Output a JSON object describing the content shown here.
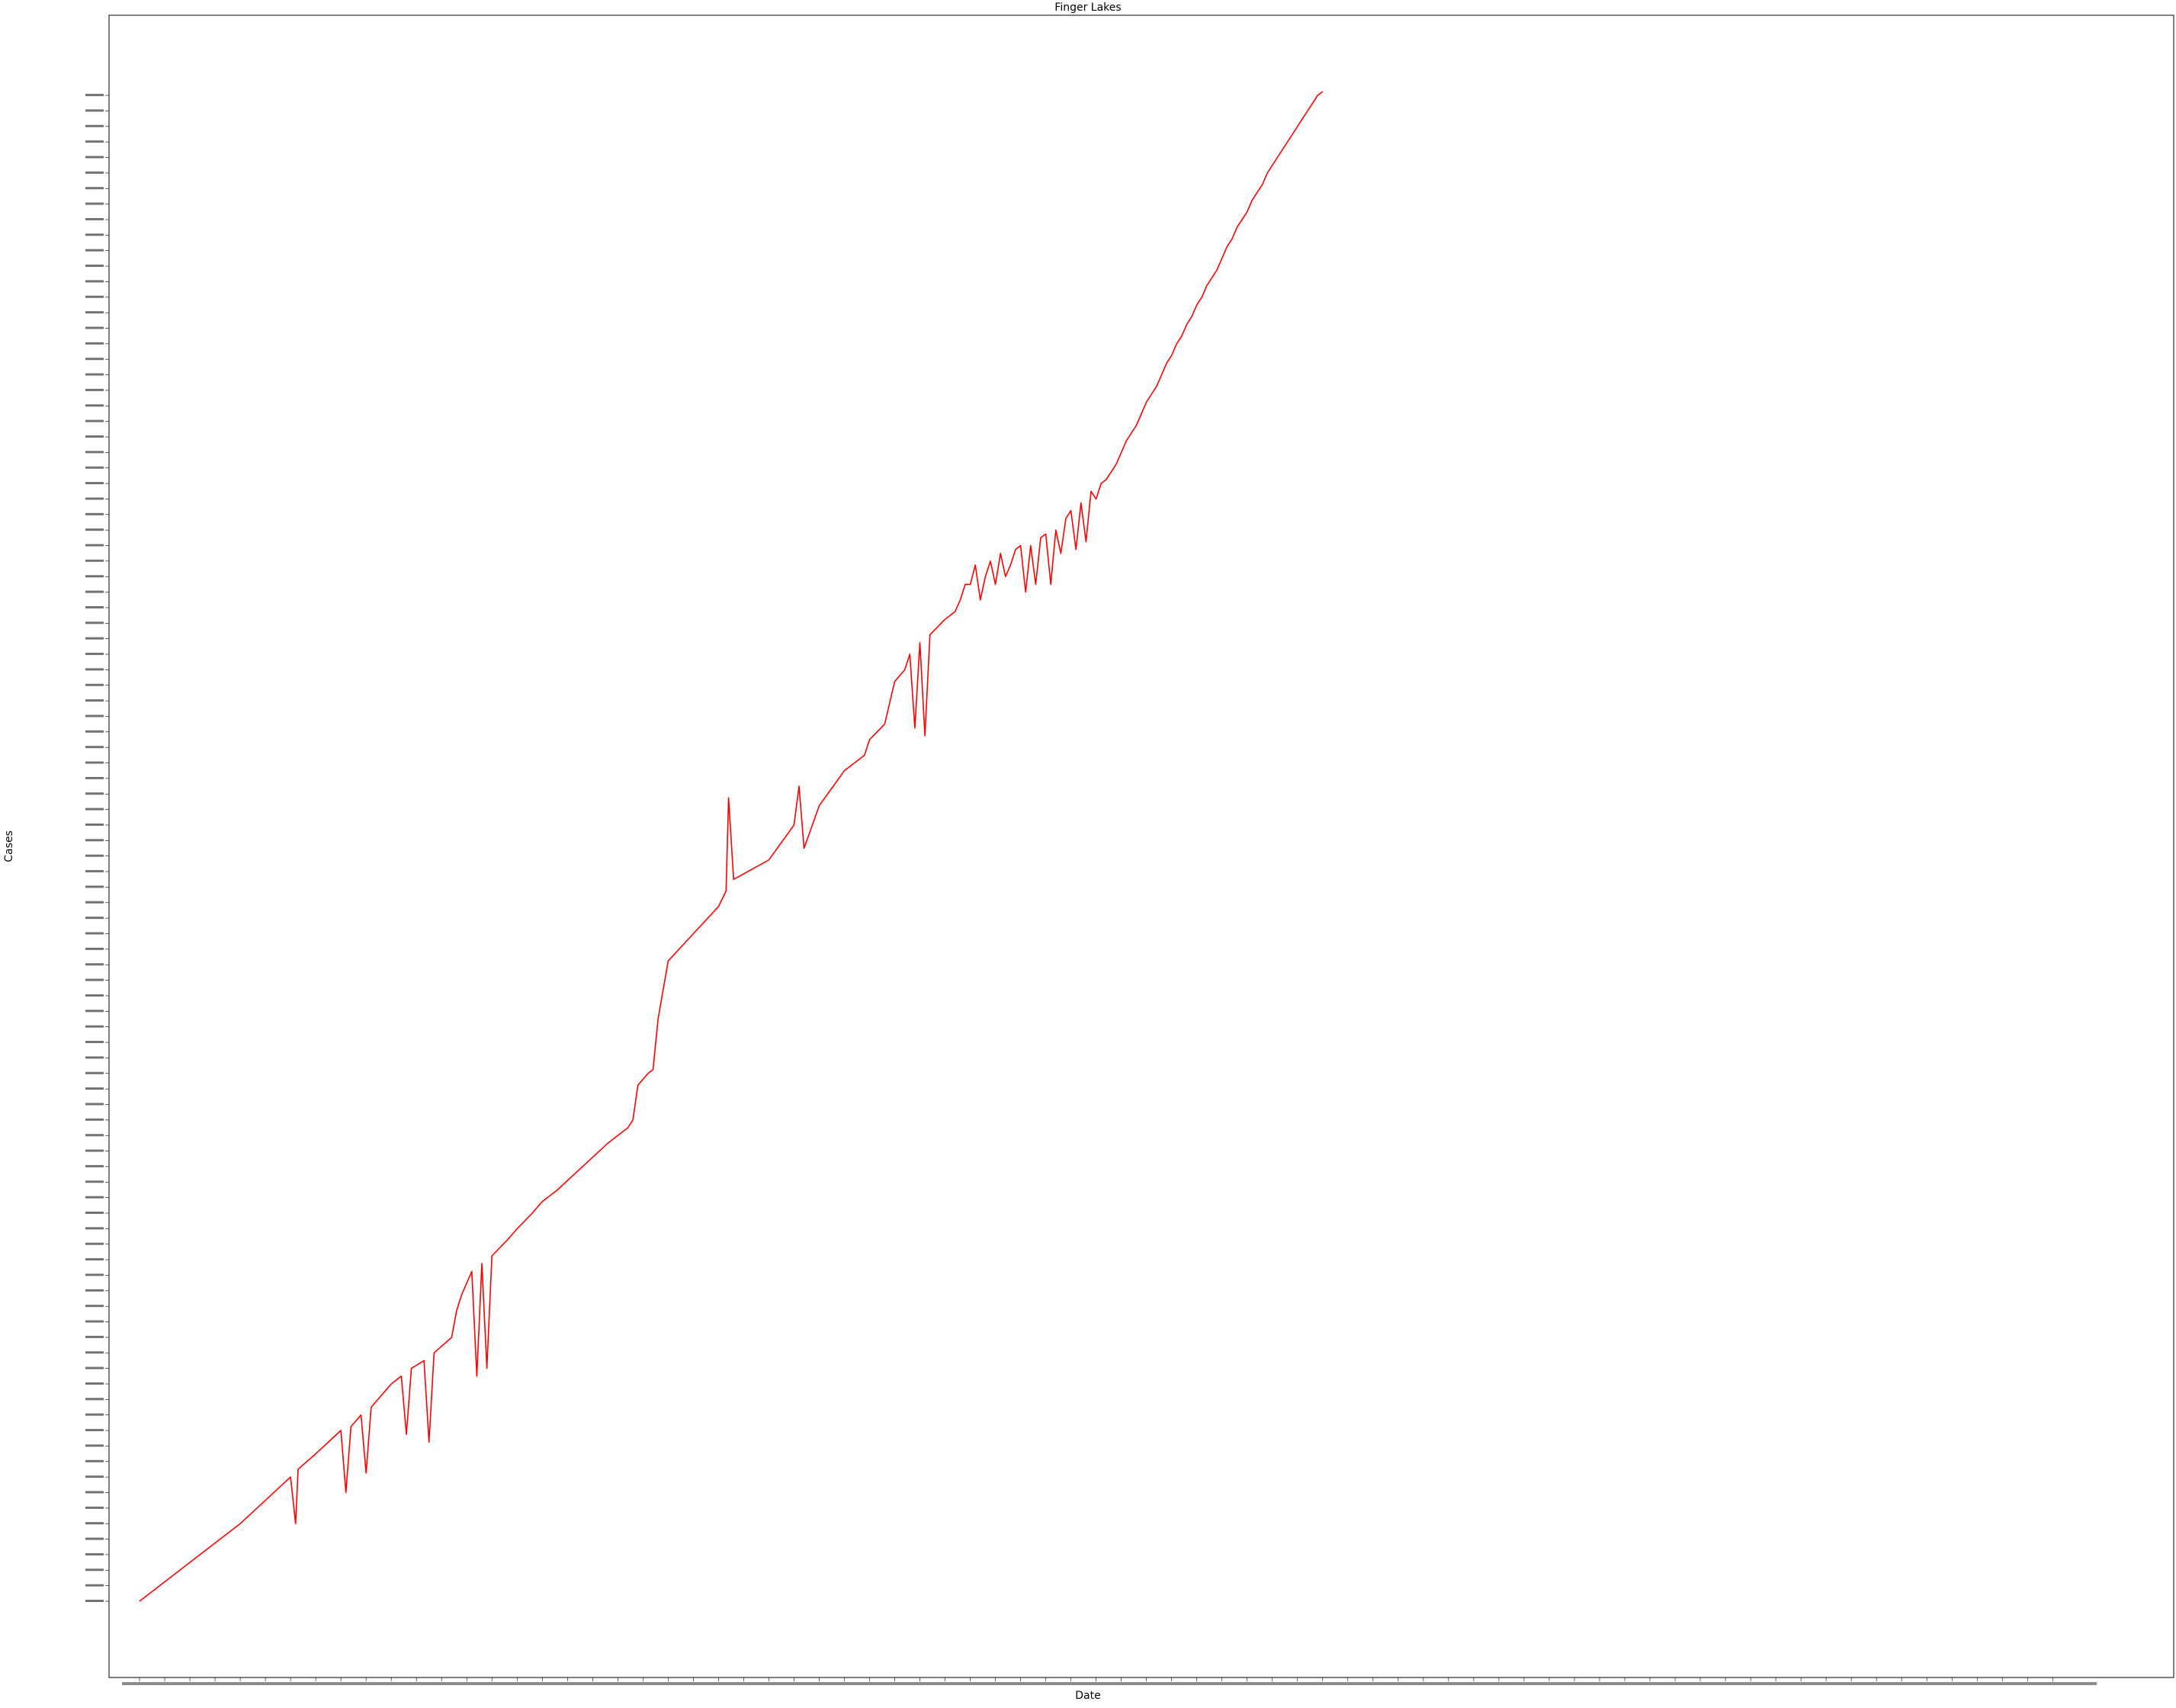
{
  "chart_data": {
    "type": "line",
    "title": "Finger Lakes",
    "xlabel": "Date",
    "ylabel": "Cases",
    "color": "#ff0000",
    "grid": false,
    "legend": "none",
    "note_y_axis": "categorical — the y tick labels are individual daily case counts plotted as categories (first-appearance order), so the line mostly climbs; the individual tiny labels are not legible",
    "note_x_axis": "categorical — about 770 daily date ticks, labels overlap and are not legible",
    "x_count": 770,
    "y_category_count": 390,
    "series": [
      {
        "name": "",
        "values": [
          0,
          2,
          4,
          6,
          8,
          10,
          12,
          14,
          16,
          18,
          20,
          22,
          24,
          26,
          28,
          30,
          32,
          34,
          36,
          38,
          40,
          42,
          44,
          46,
          48,
          50,
          52,
          54,
          56,
          58,
          60,
          62,
          64,
          66,
          68,
          70,
          72,
          74,
          76,
          78,
          80,
          82,
          84,
          86,
          88,
          90,
          92,
          94,
          96,
          98,
          100,
          102,
          104,
          106,
          108,
          110,
          112,
          114,
          116,
          118,
          120,
          122,
          124,
          126,
          128,
          130,
          132,
          134,
          136,
          138,
          140,
          142,
          144,
          146,
          148,
          150,
          152,
          154,
          156,
          158,
          160,
          162,
          164,
          166,
          168,
          170,
          172,
          174,
          176,
          178,
          180,
          182,
          184,
          186,
          188,
          190,
          192,
          194,
          196,
          198,
          200,
          202,
          204,
          206,
          208,
          210,
          212,
          214,
          216,
          218,
          220,
          222,
          224,
          226,
          228,
          230,
          232,
          234,
          236,
          238,
          240,
          242,
          244,
          246,
          248,
          250,
          252,
          254,
          256,
          258,
          260,
          262,
          264,
          266,
          268,
          270,
          272,
          274,
          276,
          278,
          280,
          282,
          284,
          286,
          288,
          290,
          292,
          294,
          296,
          298,
          300,
          302,
          304,
          306,
          308,
          310,
          312,
          314,
          316,
          318,
          320,
          322,
          324,
          326,
          328,
          330,
          332,
          334,
          336,
          338,
          340,
          342,
          344,
          346,
          348,
          350,
          352,
          354,
          356,
          358,
          360,
          362,
          364,
          366,
          368,
          370,
          372,
          374,
          376,
          378,
          380,
          382,
          384,
          386,
          388,
          389
        ]
      }
    ],
    "series_points": [
      [
        0,
        0
      ],
      [
        24,
        12
      ],
      [
        40,
        20
      ],
      [
        60,
        32
      ],
      [
        62,
        20
      ],
      [
        63,
        34
      ],
      [
        70,
        38
      ],
      [
        80,
        44
      ],
      [
        82,
        28
      ],
      [
        84,
        45
      ],
      [
        88,
        48
      ],
      [
        90,
        33
      ],
      [
        92,
        50
      ],
      [
        100,
        56
      ],
      [
        104,
        58
      ],
      [
        106,
        43
      ],
      [
        108,
        60
      ],
      [
        113,
        62
      ],
      [
        115,
        41
      ],
      [
        117,
        64
      ],
      [
        124,
        68
      ],
      [
        126,
        75
      ],
      [
        128,
        79
      ],
      [
        130,
        82
      ],
      [
        132,
        85
      ],
      [
        134,
        58
      ],
      [
        136,
        87
      ],
      [
        138,
        60
      ],
      [
        140,
        89
      ],
      [
        146,
        93
      ],
      [
        150,
        96
      ],
      [
        156,
        100
      ],
      [
        160,
        103
      ],
      [
        166,
        106
      ],
      [
        176,
        112
      ],
      [
        186,
        118
      ],
      [
        194,
        122
      ],
      [
        196,
        124
      ],
      [
        198,
        133
      ],
      [
        202,
        136
      ],
      [
        204,
        137
      ],
      [
        206,
        150
      ],
      [
        210,
        165
      ],
      [
        220,
        172
      ],
      [
        230,
        179
      ],
      [
        233,
        183
      ],
      [
        234,
        207
      ],
      [
        236,
        186
      ],
      [
        250,
        191
      ],
      [
        260,
        200
      ],
      [
        262,
        210
      ],
      [
        264,
        194
      ],
      [
        270,
        205
      ],
      [
        280,
        214
      ],
      [
        288,
        218
      ],
      [
        290,
        222
      ],
      [
        296,
        226
      ],
      [
        300,
        237
      ],
      [
        304,
        240
      ],
      [
        306,
        244
      ],
      [
        308,
        225
      ],
      [
        310,
        247
      ],
      [
        312,
        223
      ],
      [
        314,
        249
      ],
      [
        320,
        253
      ],
      [
        324,
        255
      ],
      [
        326,
        258
      ],
      [
        328,
        262
      ],
      [
        330,
        262
      ],
      [
        332,
        267
      ],
      [
        334,
        258
      ],
      [
        336,
        264
      ],
      [
        338,
        268
      ],
      [
        340,
        262
      ],
      [
        342,
        270
      ],
      [
        344,
        264
      ],
      [
        346,
        267
      ],
      [
        348,
        271
      ],
      [
        350,
        272
      ],
      [
        352,
        260
      ],
      [
        354,
        272
      ],
      [
        356,
        262
      ],
      [
        358,
        274
      ],
      [
        360,
        275
      ],
      [
        362,
        262
      ],
      [
        364,
        276
      ],
      [
        366,
        270
      ],
      [
        368,
        279
      ],
      [
        370,
        281
      ],
      [
        372,
        271
      ],
      [
        374,
        283
      ],
      [
        376,
        273
      ],
      [
        378,
        286
      ],
      [
        380,
        284
      ],
      [
        382,
        288
      ],
      [
        384,
        289
      ],
      [
        386,
        291
      ],
      [
        388,
        293
      ],
      [
        390,
        296
      ],
      [
        392,
        299
      ],
      [
        394,
        301
      ],
      [
        396,
        303
      ],
      [
        398,
        306
      ],
      [
        400,
        309
      ],
      [
        402,
        311
      ],
      [
        404,
        313
      ],
      [
        406,
        316
      ],
      [
        408,
        319
      ],
      [
        410,
        321
      ],
      [
        412,
        324
      ],
      [
        414,
        326
      ],
      [
        416,
        329
      ],
      [
        418,
        331
      ],
      [
        420,
        334
      ],
      [
        422,
        336
      ],
      [
        424,
        339
      ],
      [
        426,
        341
      ],
      [
        428,
        343
      ],
      [
        430,
        346
      ],
      [
        432,
        349
      ],
      [
        434,
        351
      ],
      [
        436,
        354
      ],
      [
        438,
        356
      ],
      [
        440,
        358
      ],
      [
        442,
        361
      ],
      [
        444,
        363
      ],
      [
        446,
        365
      ],
      [
        448,
        368
      ],
      [
        450,
        370
      ],
      [
        452,
        372
      ],
      [
        454,
        374
      ],
      [
        456,
        376
      ],
      [
        458,
        378
      ],
      [
        460,
        380
      ],
      [
        462,
        382
      ],
      [
        464,
        384
      ],
      [
        466,
        386
      ],
      [
        468,
        388
      ],
      [
        470,
        389
      ]
    ]
  }
}
